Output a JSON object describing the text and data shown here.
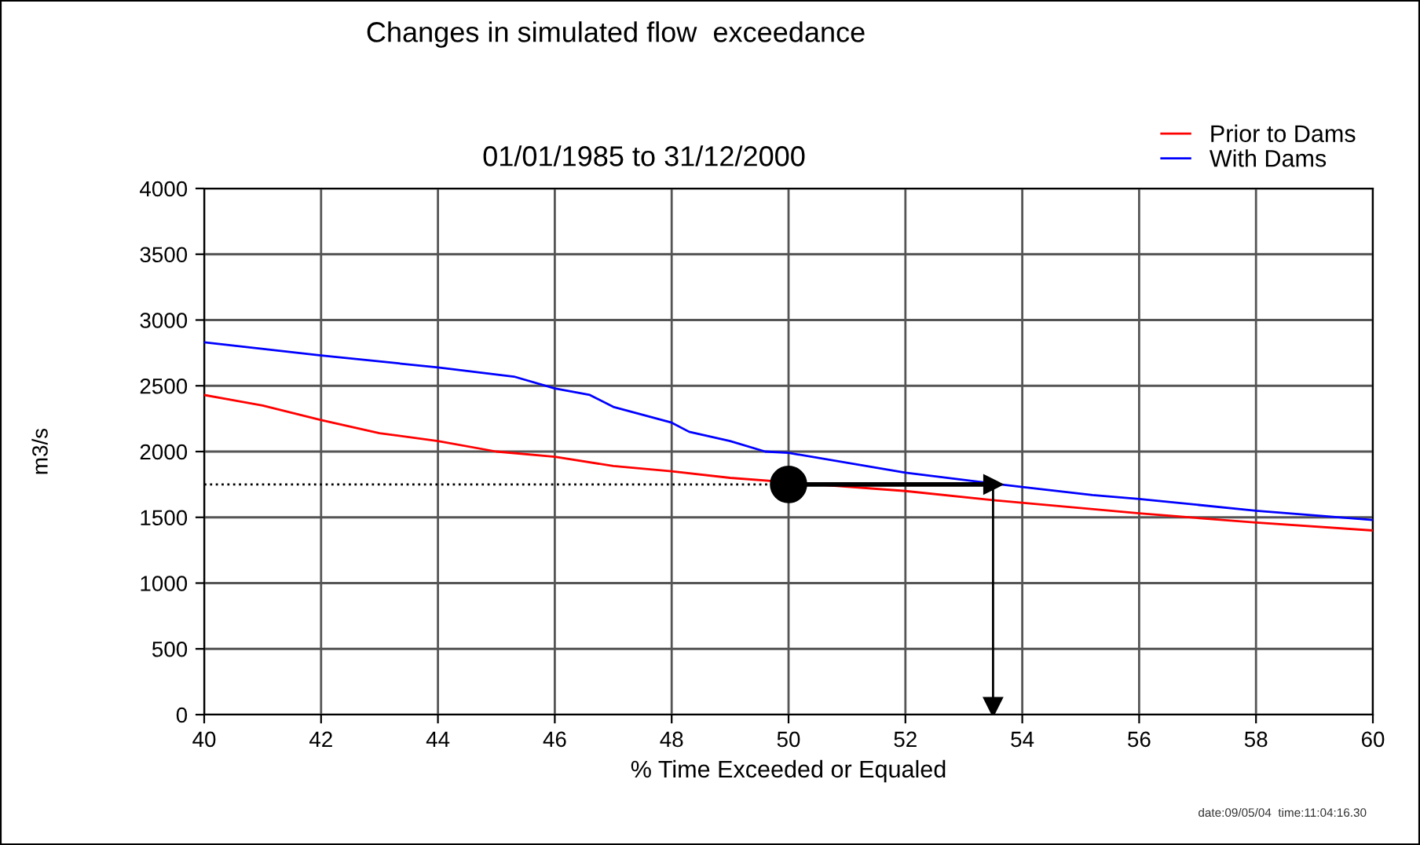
{
  "chart_data": {
    "type": "line",
    "title": "Changes in simulated flow  exceedance",
    "subtitle": "01/01/1985 to 31/12/2000",
    "xlabel": "% Time Exceeded or Equaled",
    "ylabel": "m3/s",
    "annotations": [
      "date:09/05/04  time:11:04:16.30"
    ],
    "xlim": [
      40,
      60
    ],
    "xticks": [
      40,
      42,
      44,
      46,
      48,
      50,
      52,
      54,
      56,
      58,
      60
    ],
    "ylim": [
      0,
      4000
    ],
    "yticks": [
      0,
      500,
      1000,
      1500,
      2000,
      2500,
      3000,
      3500,
      4000
    ],
    "grid": true,
    "legend": "top right",
    "marker": "none",
    "line_style": "solid",
    "series": [
      {
        "name": "Prior to Dams",
        "color": "#ff0000",
        "x": [
          40,
          41,
          42,
          43,
          44,
          45,
          46,
          47,
          48,
          49,
          52,
          53.5,
          56,
          58,
          60
        ],
        "values": [
          2430,
          2350,
          2240,
          2140,
          2080,
          2000,
          1960,
          1890,
          1850,
          1800,
          1700,
          1630,
          1530,
          1460,
          1400
        ]
      },
      {
        "name": "With Dams",
        "color": "#0000ff",
        "x": [
          40,
          42,
          44,
          45.3,
          46,
          46.6,
          47,
          48,
          48.3,
          49,
          49.6,
          50,
          52,
          54,
          55.2,
          56,
          58,
          60
        ],
        "values": [
          2830,
          2730,
          2640,
          2570,
          2480,
          2430,
          2340,
          2220,
          2150,
          2080,
          2000,
          1990,
          1840,
          1730,
          1670,
          1640,
          1550,
          1480
        ]
      },
      {
        "type": "line",
        "color": "#000000",
        "line_style": "dotted",
        "x": [
          40,
          50
        ],
        "values": [
          1750,
          1750
        ]
      },
      {
        "type": "line",
        "marker": "triangle",
        "color": "#000000",
        "x": [
          50,
          53.5
        ],
        "values": [
          1750,
          1750
        ]
      },
      {
        "type": "line",
        "marker": "triangle",
        "color": "#000000",
        "x": [
          53.5,
          53.5
        ],
        "values": [
          1750,
          60
        ]
      },
      {
        "type": "scatter",
        "color": "#000000",
        "marker": "circle",
        "x": [
          50
        ],
        "values": [
          1750
        ]
      }
    ]
  }
}
